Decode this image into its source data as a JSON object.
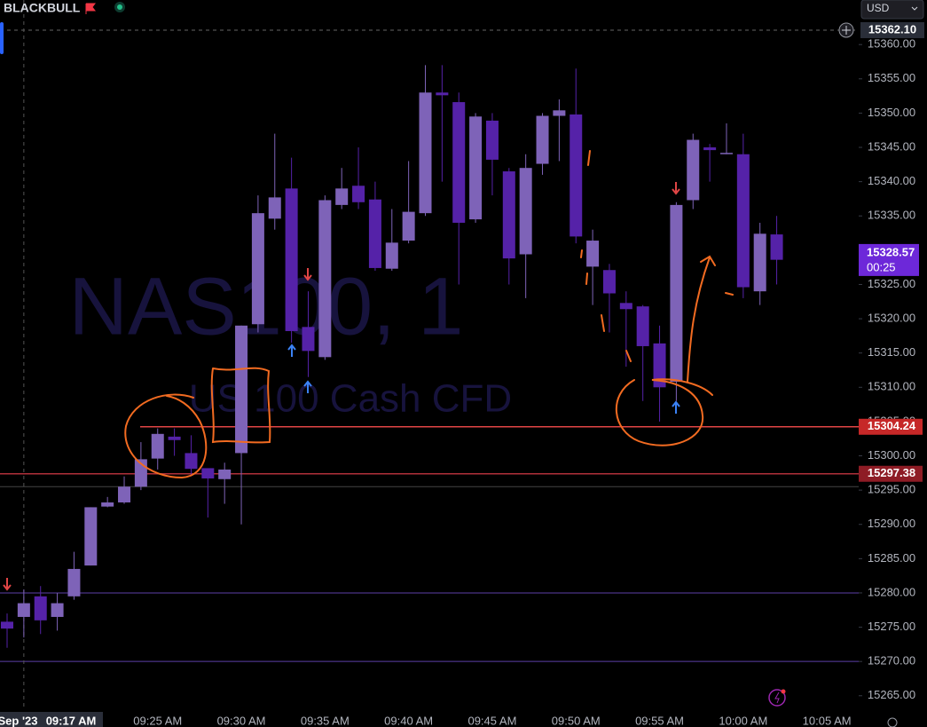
{
  "header": {
    "broker": "BLACKBULL",
    "currency": "USD"
  },
  "chart_data": {
    "type": "candlestick",
    "watermark": "NAS100, 1",
    "watermark_sub": "US 100 Cash CFD",
    "categories": [
      null,
      null,
      null,
      null,
      null,
      null,
      null,
      null,
      null,
      "09:25 AM",
      null,
      null,
      null,
      null,
      "09:30 AM",
      null,
      null,
      null,
      null,
      "09:35 AM",
      null,
      null,
      null,
      null,
      "09:40 AM",
      null,
      null,
      null,
      null,
      "09:45 AM",
      null,
      null,
      null,
      null,
      "09:50 AM",
      null,
      null,
      null,
      null,
      "09:55 AM",
      null,
      null,
      null,
      null,
      "10:00 AM",
      null,
      null,
      null,
      null,
      "10:05 AM"
    ],
    "open": [
      15275.8,
      15276.5,
      15279.5,
      15276.5,
      15279.5,
      15284,
      15292.6,
      15293.2,
      15295.5,
      15299.6,
      15302.8,
      15300.4,
      15298.2,
      15296.6,
      15300.4,
      15319.2,
      15334.6,
      15339,
      15318.8,
      15314.4,
      15336.6,
      15339.4,
      15337.4,
      15327.3,
      15331.4,
      15335.4,
      15353,
      15351.6,
      15334.5,
      15348.9,
      15341.5,
      15329.4,
      15342.6,
      15349.6,
      15349.8,
      15327.6,
      15327.1,
      15322.3,
      15321.8,
      15316.4,
      15310.8,
      15337.3,
      15345,
      15344.2,
      15344,
      15324,
      15332.3,
      null,
      null,
      null
    ],
    "high": [
      15277,
      15280.5,
      15281,
      15280,
      15286,
      15292.5,
      15294,
      15297,
      15302,
      15304,
      15304,
      15303,
      15298,
      15299,
      15319,
      15338,
      15347,
      15343.5,
      15324,
      15338,
      15342,
      15345,
      15340,
      15336,
      15343,
      15357,
      15357,
      15353,
      15350,
      15350,
      15342,
      15344,
      15350,
      15352,
      15356.5,
      15333,
      15328,
      15324,
      15322,
      15319,
      15337,
      15347,
      15345.5,
      15348.5,
      15347,
      15334,
      15335,
      null,
      null,
      null
    ],
    "low": [
      15272,
      15273.5,
      15274,
      15274.5,
      15279,
      15284,
      15292.5,
      15293,
      15295,
      15298,
      15300,
      15297,
      15291,
      15293,
      15290,
      15318,
      15333,
      15316.5,
      15311.5,
      15314,
      15336,
      15336,
      15327,
      15327,
      15331,
      15335,
      15340,
      15325,
      15334,
      15338,
      15325,
      15323,
      15341,
      15343,
      15331,
      15322,
      15318,
      15313,
      15308,
      15305,
      15308,
      15336,
      15340,
      15344,
      15323,
      15322,
      15325,
      null,
      null,
      null
    ],
    "close": [
      15274.8,
      15278.5,
      15276,
      15278.5,
      15283.5,
      15292.5,
      15293.2,
      15295.5,
      15299.5,
      15303.2,
      15302.3,
      15298.1,
      15296.7,
      15298,
      15319,
      15335.4,
      15337.7,
      15318.2,
      15315.3,
      15337.3,
      15339,
      15337,
      15327.4,
      15331.1,
      15335.6,
      15353,
      15352.6,
      15334,
      15349.5,
      15343.2,
      15328.8,
      15342,
      15349.6,
      15350.4,
      15332,
      15331.4,
      15323.7,
      15321.4,
      15316,
      15310,
      15336.6,
      15346.1,
      15344.6,
      15344.2,
      15324.6,
      15332.4,
      15328.6,
      null,
      null,
      null
    ],
    "up_color": "#7e63b8",
    "down_color": "#5522a8",
    "ylim": [
      15262.9,
      15366.5
    ],
    "yticks": [
      {
        "value": 15265,
        "label": "15265.00"
      },
      {
        "value": 15270,
        "label": "15270.00"
      },
      {
        "value": 15275,
        "label": "15275.00"
      },
      {
        "value": 15280,
        "label": "15280.00"
      },
      {
        "value": 15285,
        "label": "15285.00"
      },
      {
        "value": 15290,
        "label": "15290.00"
      },
      {
        "value": 15295,
        "label": "15295.00"
      },
      {
        "value": 15300,
        "label": "15300.00"
      },
      {
        "value": 15305,
        "label": "15305.00"
      },
      {
        "value": 15310,
        "label": "15310.00"
      },
      {
        "value": 15315,
        "label": "15315.00"
      },
      {
        "value": 15320,
        "label": "15320.00"
      },
      {
        "value": 15325,
        "label": "15325.00"
      },
      {
        "value": 15330,
        "label": "15330.00"
      },
      {
        "value": 15335,
        "label": "15335.00"
      },
      {
        "value": 15340,
        "label": "15340.00"
      },
      {
        "value": 15345,
        "label": "15345.00"
      },
      {
        "value": 15350,
        "label": "15350.00"
      },
      {
        "value": 15355,
        "label": "15355.00"
      },
      {
        "value": 15360,
        "label": "15360.00"
      }
    ],
    "levels": [
      {
        "value": 15304.24,
        "color": "#e04545",
        "label_color": "#c62828"
      },
      {
        "value": 15297.38,
        "color": "#b0303a",
        "label_color": "#8e1c25"
      }
    ],
    "plain_lines": [
      {
        "value": 15295.5,
        "color": "#444"
      },
      {
        "value": 15280,
        "color": "#5b3fa8"
      },
      {
        "value": 15270,
        "color": "#5b3fa8"
      }
    ],
    "current_price": {
      "value": 15328.57,
      "countdown": "00:25",
      "color": "#6d28d9"
    },
    "crosshair": {
      "price": {
        "value": 15362.1,
        "label": "15362.10"
      },
      "date_label": "Sep '23",
      "time_label": "09:17 AM",
      "index": 1
    }
  }
}
